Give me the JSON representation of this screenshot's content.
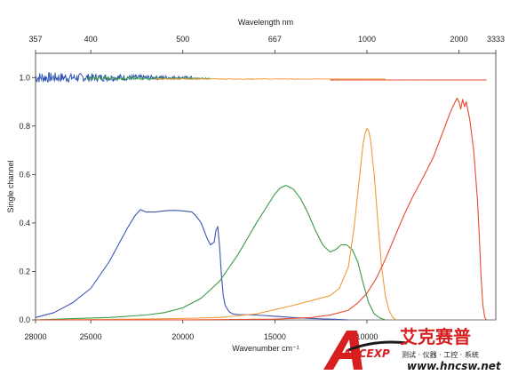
{
  "chart_data": {
    "type": "line",
    "title": "",
    "xlabel": "Wavenumber cm⁻¹",
    "x2label": "Wavelength nm",
    "ylabel": "Single channel",
    "xlim": [
      28000,
      3000
    ],
    "ylim": [
      0,
      1.1
    ],
    "xticks": [
      {
        "value": 28000,
        "label": "28000"
      },
      {
        "value": 25000,
        "label": "25000"
      },
      {
        "value": 20000,
        "label": "20000"
      },
      {
        "value": 15000,
        "label": "15000"
      },
      {
        "value": 10000,
        "label": "10000"
      }
    ],
    "x2ticks": [
      {
        "value": 28000,
        "label": "357"
      },
      {
        "value": 25000,
        "label": "400"
      },
      {
        "value": 20000,
        "label": "500"
      },
      {
        "value": 15000,
        "label": "667"
      },
      {
        "value": 10000,
        "label": "1000"
      },
      {
        "value": 5000,
        "label": "2000"
      },
      {
        "value": 3000,
        "label": "3333"
      }
    ],
    "yticks": [
      {
        "value": 0.0,
        "label": "0.0"
      },
      {
        "value": 0.2,
        "label": "0.2"
      },
      {
        "value": 0.4,
        "label": "0.4"
      },
      {
        "value": 0.6,
        "label": "0.6"
      },
      {
        "value": 0.8,
        "label": "0.8"
      },
      {
        "value": 1.0,
        "label": "1.0"
      }
    ],
    "series": [
      {
        "color": "#3b55b4",
        "x": [
          28000,
          27000,
          26000,
          25000,
          24000,
          23500,
          23000,
          22600,
          22300,
          22000,
          21500,
          21000,
          20500,
          20000,
          19500,
          19300,
          19000,
          18700,
          18500,
          18300,
          18200,
          18100,
          18000,
          17900,
          17800,
          17700,
          17500,
          17300,
          17000,
          16000,
          15000,
          14000,
          13000,
          12000,
          11000
        ],
        "y": [
          0.01,
          0.03,
          0.07,
          0.13,
          0.24,
          0.31,
          0.38,
          0.43,
          0.455,
          0.445,
          0.445,
          0.45,
          0.452,
          0.45,
          0.445,
          0.43,
          0.4,
          0.34,
          0.31,
          0.32,
          0.37,
          0.385,
          0.3,
          0.18,
          0.1,
          0.06,
          0.035,
          0.025,
          0.022,
          0.02,
          0.015,
          0.01,
          0.006,
          0.003,
          0.0
        ]
      },
      {
        "color": "#3a9a46",
        "x": [
          28000,
          26000,
          24000,
          22000,
          21000,
          20000,
          19000,
          18000,
          17000,
          16000,
          15500,
          15000,
          14700,
          14400,
          14000,
          13600,
          13200,
          12800,
          12400,
          12000,
          11700,
          11400,
          11100,
          10800,
          10500,
          10200,
          9900,
          9600,
          9300,
          9000
        ],
        "y": [
          0.0,
          0.005,
          0.01,
          0.02,
          0.03,
          0.05,
          0.09,
          0.16,
          0.27,
          0.4,
          0.46,
          0.52,
          0.545,
          0.555,
          0.54,
          0.5,
          0.44,
          0.37,
          0.31,
          0.28,
          0.29,
          0.31,
          0.31,
          0.29,
          0.24,
          0.15,
          0.07,
          0.025,
          0.008,
          0.0
        ]
      },
      {
        "color": "#f39a3c",
        "x": [
          28000,
          24000,
          20000,
          18000,
          16000,
          14000,
          13000,
          12000,
          11500,
          11000,
          10700,
          10500,
          10300,
          10200,
          10100,
          10000,
          9900,
          9800,
          9600,
          9400,
          9200,
          9000,
          8800,
          8600,
          8400
        ],
        "y": [
          0.0,
          0.002,
          0.006,
          0.01,
          0.025,
          0.06,
          0.08,
          0.1,
          0.13,
          0.22,
          0.38,
          0.52,
          0.66,
          0.73,
          0.77,
          0.79,
          0.78,
          0.74,
          0.6,
          0.4,
          0.22,
          0.1,
          0.04,
          0.01,
          0.0
        ]
      },
      {
        "color": "#e84a2c",
        "x": [
          28000,
          20000,
          15000,
          13000,
          12000,
          11000,
          10500,
          10000,
          9500,
          9000,
          8500,
          8000,
          7500,
          7000,
          6800,
          6600,
          6400,
          6200,
          6000,
          5800,
          5600,
          5400,
          5200,
          5100,
          5000,
          4900,
          4800,
          4700,
          4600,
          4500,
          4400,
          4200,
          4000,
          3900,
          3800,
          3700,
          3600,
          3500
        ],
        "y": [
          0.0,
          0.0,
          0.003,
          0.01,
          0.02,
          0.04,
          0.07,
          0.11,
          0.17,
          0.25,
          0.34,
          0.43,
          0.51,
          0.58,
          0.61,
          0.64,
          0.67,
          0.71,
          0.75,
          0.79,
          0.83,
          0.87,
          0.9,
          0.915,
          0.9,
          0.87,
          0.91,
          0.88,
          0.9,
          0.86,
          0.82,
          0.7,
          0.5,
          0.35,
          0.18,
          0.06,
          0.01,
          0.0
        ]
      }
    ],
    "reference_series": [
      {
        "color": "#2b4fb0",
        "x_start": 28000,
        "x_end": 19500,
        "y": 1.0,
        "noise": 0.018
      },
      {
        "color": "#3a9a46",
        "x_start": 25200,
        "x_end": 18500,
        "y": 0.997,
        "noise": 0.006
      },
      {
        "color": "#f39a3c",
        "x_start": 21500,
        "x_end": 9000,
        "y": 0.994,
        "noise": 0.002
      },
      {
        "color": "#e84a2c",
        "x_start": 12000,
        "x_end": 3500,
        "y": 0.99,
        "noise": 0.0005
      }
    ]
  },
  "logo": {
    "text_main": "艾克赛普",
    "text_letters": "ACCEXP",
    "text_sub": "测试 · 仪器 · 工控 · 系统",
    "url": "www.hncsw.net",
    "colors": {
      "red": "#d81e1e",
      "dark": "#1a1a1a"
    }
  }
}
